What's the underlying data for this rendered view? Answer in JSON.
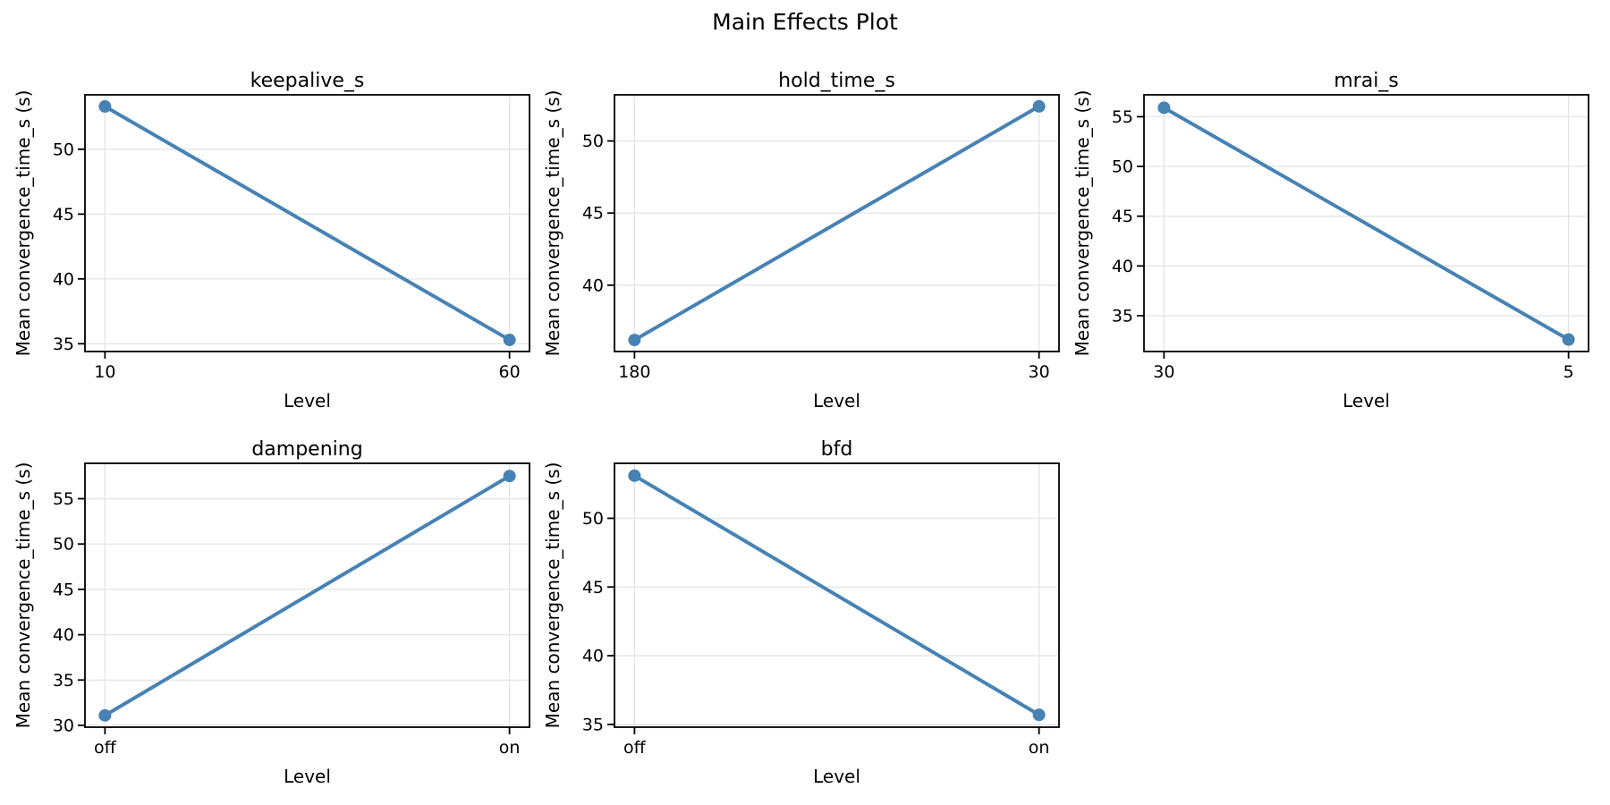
{
  "figure": {
    "title": "Main Effects Plot"
  },
  "chart_data": {
    "type": "line",
    "title": "Main Effects Plot",
    "xlabel": "Level",
    "ylabel": "Mean convergence_time_s (s)",
    "grid": true,
    "legend": false,
    "line_color": "#4682B4",
    "grid_color": "#e6e6e6",
    "marker": "circle",
    "subplots": [
      {
        "factor": "keepalive_s",
        "categories": [
          "10",
          "60"
        ],
        "values": [
          53.3,
          35.3
        ],
        "yticks": [
          35,
          40,
          45,
          50
        ],
        "ylim": [
          34.4,
          54.2
        ]
      },
      {
        "factor": "hold_time_s",
        "categories": [
          "180",
          "30"
        ],
        "values": [
          36.2,
          52.4
        ],
        "yticks": [
          40,
          45,
          50
        ],
        "ylim": [
          35.4,
          53.2
        ]
      },
      {
        "factor": "mrai_s",
        "categories": [
          "30",
          "5"
        ],
        "values": [
          55.9,
          32.6
        ],
        "yticks": [
          35,
          40,
          45,
          50,
          55
        ],
        "ylim": [
          31.4,
          57.2
        ]
      },
      {
        "factor": "dampening",
        "categories": [
          "off",
          "on"
        ],
        "values": [
          31.1,
          57.5
        ],
        "yticks": [
          30,
          35,
          40,
          45,
          50,
          55
        ],
        "ylim": [
          29.8,
          58.9
        ]
      },
      {
        "factor": "bfd",
        "categories": [
          "off",
          "on"
        ],
        "values": [
          53.1,
          35.7
        ],
        "yticks": [
          35,
          40,
          45,
          50
        ],
        "ylim": [
          34.8,
          54.0
        ]
      }
    ]
  }
}
